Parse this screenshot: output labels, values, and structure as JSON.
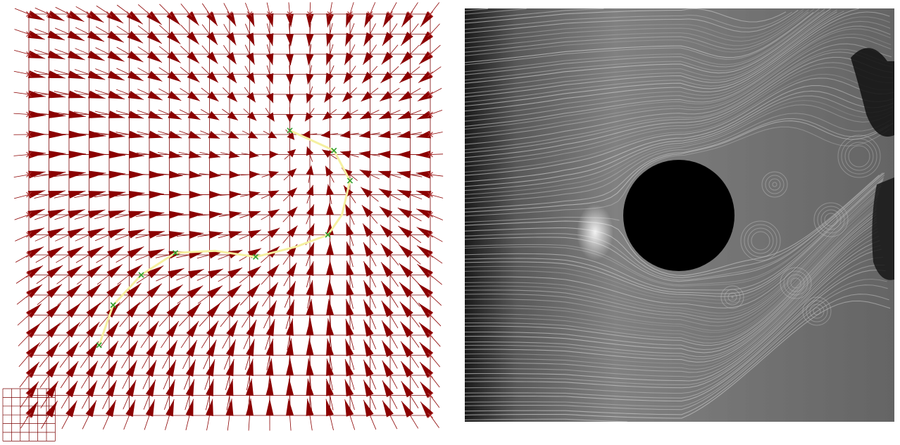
{
  "figure": {
    "panels": [
      {
        "name": "vector-field-panel",
        "kind": "glyph-plot"
      },
      {
        "name": "lic-panel",
        "kind": "line-integral-convolution-image"
      }
    ]
  },
  "colors": {
    "arrow": "#8b0000",
    "grid_line": "#7a0000",
    "marker": "#b03030",
    "streamline_path": "#f5f0a0",
    "path_marker": "#2e9e2e",
    "lic_background": "#6a6a6a",
    "obstacle": "#000000"
  },
  "vector_field": {
    "grid": {
      "cols": 21,
      "rows": 21
    },
    "sink_cell": {
      "col": 13,
      "row": 6
    },
    "swirl": 0.35,
    "inset_grid": {
      "cols": 6,
      "rows": 6
    },
    "path_points_grid": [
      [
        3.5,
        16.5
      ],
      [
        4.2,
        14.5
      ],
      [
        5.6,
        13.0
      ],
      [
        7.3,
        11.9
      ],
      [
        9.3,
        11.8
      ],
      [
        11.3,
        12.1
      ],
      [
        13.3,
        11.6
      ],
      [
        14.9,
        11.0
      ],
      [
        15.6,
        10.0
      ],
      [
        16.0,
        8.3
      ],
      [
        15.2,
        6.8
      ],
      [
        13.0,
        5.8
      ]
    ],
    "path_markers": [
      0,
      1,
      2,
      3,
      5,
      7,
      9,
      10,
      11
    ]
  },
  "lic_image": {
    "obstacle": {
      "shape": "circle"
    }
  }
}
